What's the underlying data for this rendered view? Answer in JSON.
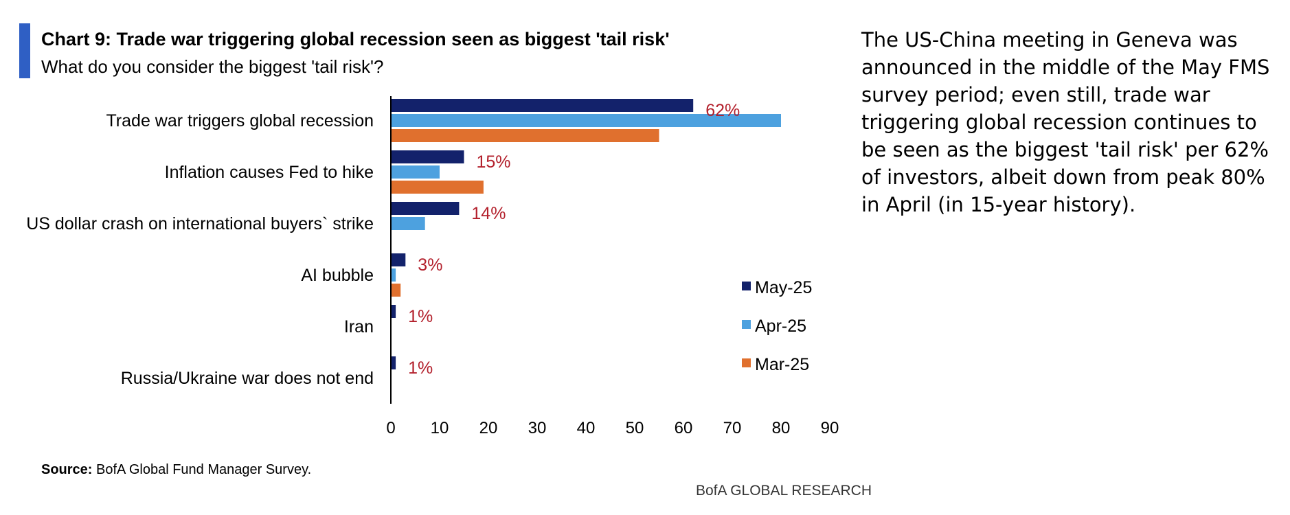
{
  "header": {
    "title": "Chart 9: Trade war triggering global recession seen as biggest 'tail risk'",
    "subtitle": "What do you consider the biggest 'tail risk'?"
  },
  "chart_data": {
    "type": "bar",
    "orientation": "horizontal",
    "categories": [
      "Trade war triggers global recession",
      "Inflation causes Fed to hike",
      "US dollar crash on international buyers` strike",
      "AI bubble",
      "Iran",
      "Russia/Ukraine war does not end"
    ],
    "series": [
      {
        "name": "May-25",
        "color": "#13226b",
        "values": [
          62,
          15,
          14,
          3,
          1,
          1
        ]
      },
      {
        "name": "Apr-25",
        "color": "#4da1df",
        "values": [
          80,
          10,
          7,
          1,
          0,
          0
        ]
      },
      {
        "name": "Mar-25",
        "color": "#e0702e",
        "values": [
          55,
          19,
          0,
          2,
          0,
          0
        ]
      }
    ],
    "data_labels": [
      "62%",
      "15%",
      "14%",
      "3%",
      "1%",
      "1%"
    ],
    "xlim": [
      0,
      90
    ],
    "xticks": [
      0,
      10,
      20,
      30,
      40,
      50,
      60,
      70,
      80,
      90
    ],
    "grid": false,
    "legend_position": "right"
  },
  "commentary": "The US-China meeting in Geneva was announced in the middle of the May FMS survey period; even still, trade war triggering global recession continues to be seen as the biggest 'tail risk' per 62% of investors, albeit down from peak 80% in April (in 15-year history).",
  "footer": {
    "source_label": "Source:",
    "source_text": " BofA Global Fund Manager Survey.",
    "brand": "BofA GLOBAL RESEARCH"
  },
  "colors": {
    "accent": "#2f5fc4",
    "data_label": "#b3202c"
  }
}
